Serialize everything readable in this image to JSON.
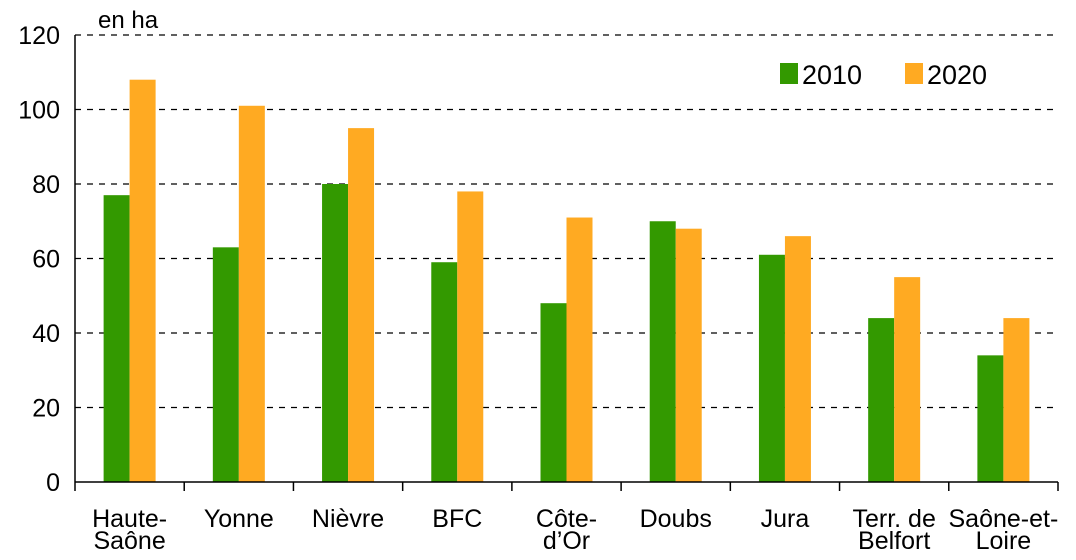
{
  "chart_data": {
    "type": "bar",
    "unit_label": "en ha",
    "categories": [
      [
        "Haute-",
        "Saône"
      ],
      [
        "Yonne"
      ],
      [
        "Nièvre"
      ],
      [
        "BFC"
      ],
      [
        "Côte-",
        "d’Or"
      ],
      [
        "Doubs"
      ],
      [
        "Jura"
      ],
      [
        "Terr. de",
        "Belfort"
      ],
      [
        "Saône-et-",
        "Loire"
      ]
    ],
    "series": [
      {
        "name": "2010",
        "color": "#339900",
        "values": [
          77,
          63,
          80,
          59,
          48,
          70,
          61,
          44,
          34
        ]
      },
      {
        "name": "2020",
        "color": "#FFAA22",
        "values": [
          108,
          101,
          95,
          78,
          71,
          68,
          66,
          55,
          44
        ]
      }
    ],
    "yticks": [
      "0",
      "20",
      "40",
      "60",
      "80",
      "100",
      "120"
    ],
    "ylim": [
      0,
      120
    ],
    "grid": true,
    "legend_position": "top-right"
  }
}
